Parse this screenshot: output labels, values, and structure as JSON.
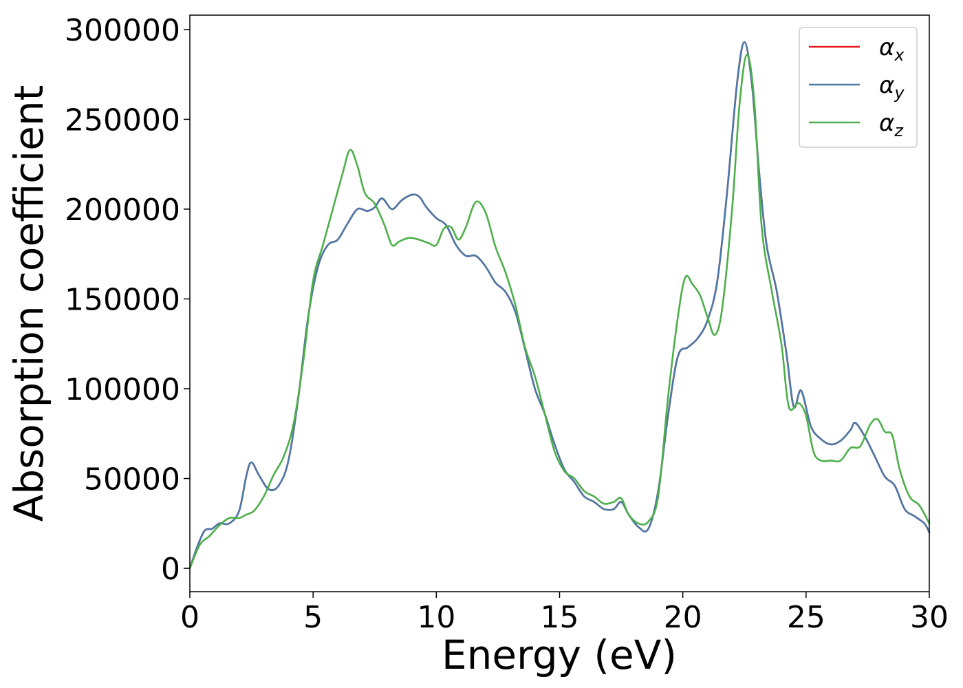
{
  "chart_data": {
    "type": "line",
    "title": "",
    "xlabel": "Energy (eV)",
    "ylabel": "Absorption coefficient",
    "xlim": [
      0,
      30
    ],
    "ylim": [
      -13000,
      308000
    ],
    "xticks": [
      0,
      5,
      10,
      15,
      20,
      25,
      30
    ],
    "xtick_labels": [
      "0",
      "5",
      "10",
      "15",
      "20",
      "25",
      "30"
    ],
    "yticks": [
      0,
      50000,
      100000,
      150000,
      200000,
      250000,
      300000
    ],
    "ytick_labels": [
      "0",
      "50000",
      "100000",
      "150000",
      "200000",
      "250000",
      "300000"
    ],
    "grid": false,
    "legend_position": "top-right",
    "series": [
      {
        "name": "α_x",
        "legend_symbol": "α",
        "legend_subscript": "x",
        "color": "#e41a1c",
        "x": [
          0,
          0.3,
          0.6,
          0.9,
          1.2,
          1.6,
          2.0,
          2.3,
          2.5,
          2.8,
          3.2,
          3.6,
          4.0,
          4.4,
          4.8,
          5.2,
          5.6,
          6.0,
          6.4,
          6.8,
          7.2,
          7.5,
          7.8,
          8.2,
          8.6,
          9.0,
          9.3,
          9.6,
          10.0,
          10.4,
          10.8,
          11.2,
          11.6,
          12.0,
          12.4,
          12.8,
          13.2,
          13.6,
          14.0,
          14.4,
          14.8,
          15.2,
          15.6,
          16.0,
          16.4,
          16.8,
          17.2,
          17.5,
          17.8,
          18.2,
          18.6,
          19.0,
          19.4,
          19.8,
          20.2,
          20.6,
          21.0,
          21.4,
          21.8,
          22.2,
          22.5,
          22.8,
          23.1,
          23.4,
          23.8,
          24.2,
          24.5,
          24.8,
          25.2,
          25.6,
          26.0,
          26.4,
          26.8,
          27.0,
          27.4,
          27.8,
          28.2,
          28.6,
          29.0,
          29.4,
          29.8,
          30.0
        ],
        "y": [
          0,
          12000,
          21000,
          22000,
          25000,
          25000,
          32000,
          52000,
          59000,
          52000,
          44000,
          46000,
          60000,
          95000,
          140000,
          168000,
          180000,
          183000,
          192000,
          200000,
          199000,
          201000,
          206000,
          200000,
          205000,
          208000,
          207000,
          201000,
          195000,
          191000,
          180000,
          174000,
          174000,
          168000,
          159000,
          154000,
          143000,
          122000,
          100000,
          86000,
          69000,
          55000,
          48000,
          40000,
          37000,
          33000,
          33000,
          37000,
          30000,
          23000,
          22000,
          43000,
          85000,
          118000,
          123000,
          128000,
          138000,
          160000,
          210000,
          270000,
          293000,
          270000,
          220000,
          180000,
          155000,
          120000,
          90000,
          99000,
          79000,
          72000,
          69000,
          71000,
          77000,
          81000,
          73000,
          62000,
          51000,
          46000,
          33000,
          29000,
          25000,
          20000
        ]
      },
      {
        "name": "α_y",
        "legend_symbol": "α",
        "legend_subscript": "y",
        "color": "#4a79a8",
        "x": [
          0,
          0.3,
          0.6,
          0.9,
          1.2,
          1.6,
          2.0,
          2.3,
          2.5,
          2.8,
          3.2,
          3.6,
          4.0,
          4.4,
          4.8,
          5.2,
          5.6,
          6.0,
          6.4,
          6.8,
          7.2,
          7.5,
          7.8,
          8.2,
          8.6,
          9.0,
          9.3,
          9.6,
          10.0,
          10.4,
          10.8,
          11.2,
          11.6,
          12.0,
          12.4,
          12.8,
          13.2,
          13.6,
          14.0,
          14.4,
          14.8,
          15.2,
          15.6,
          16.0,
          16.4,
          16.8,
          17.2,
          17.5,
          17.8,
          18.2,
          18.6,
          19.0,
          19.4,
          19.8,
          20.2,
          20.6,
          21.0,
          21.4,
          21.8,
          22.2,
          22.5,
          22.8,
          23.1,
          23.4,
          23.8,
          24.2,
          24.5,
          24.8,
          25.2,
          25.6,
          26.0,
          26.4,
          26.8,
          27.0,
          27.4,
          27.8,
          28.2,
          28.6,
          29.0,
          29.4,
          29.8,
          30.0
        ],
        "y": [
          0,
          12000,
          21000,
          22000,
          25000,
          25000,
          32000,
          52000,
          59000,
          52000,
          44000,
          46000,
          60000,
          95000,
          140000,
          168000,
          180000,
          183000,
          192000,
          200000,
          199000,
          201000,
          206000,
          200000,
          205000,
          208000,
          207000,
          201000,
          195000,
          191000,
          180000,
          174000,
          174000,
          168000,
          159000,
          154000,
          143000,
          122000,
          100000,
          86000,
          69000,
          55000,
          48000,
          40000,
          37000,
          33000,
          33000,
          37000,
          30000,
          23000,
          22000,
          43000,
          85000,
          118000,
          123000,
          128000,
          138000,
          160000,
          210000,
          270000,
          293000,
          270000,
          220000,
          180000,
          155000,
          120000,
          90000,
          99000,
          79000,
          72000,
          69000,
          71000,
          77000,
          81000,
          73000,
          62000,
          51000,
          46000,
          33000,
          29000,
          25000,
          20000
        ]
      },
      {
        "name": "α_z",
        "legend_symbol": "α",
        "legend_subscript": "z",
        "color": "#4daf4a",
        "x": [
          0,
          0.4,
          0.8,
          1.2,
          1.6,
          2.0,
          2.3,
          2.6,
          3.0,
          3.4,
          3.8,
          4.2,
          4.6,
          5.0,
          5.4,
          5.8,
          6.2,
          6.5,
          6.8,
          7.1,
          7.5,
          7.9,
          8.2,
          8.5,
          8.9,
          9.3,
          9.7,
          10.0,
          10.3,
          10.6,
          10.9,
          11.2,
          11.6,
          12.0,
          12.4,
          12.8,
          13.2,
          13.6,
          14.0,
          14.4,
          14.8,
          15.2,
          15.6,
          16.0,
          16.4,
          16.8,
          17.2,
          17.5,
          17.8,
          18.2,
          18.6,
          19.0,
          19.4,
          19.8,
          20.1,
          20.4,
          20.7,
          21.0,
          21.3,
          21.6,
          22.0,
          22.3,
          22.6,
          22.9,
          23.2,
          23.6,
          24.0,
          24.3,
          24.7,
          25.0,
          25.3,
          25.6,
          26.0,
          26.4,
          26.8,
          27.2,
          27.6,
          27.9,
          28.2,
          28.5,
          28.8,
          29.2,
          29.6,
          30.0
        ],
        "y": [
          0,
          13000,
          18000,
          24000,
          28000,
          28000,
          30000,
          32000,
          40000,
          52000,
          62000,
          80000,
          115000,
          160000,
          180000,
          200000,
          220000,
          233000,
          224000,
          209000,
          203000,
          191000,
          180000,
          182000,
          184000,
          183000,
          181000,
          180000,
          189000,
          190000,
          183000,
          190000,
          204000,
          198000,
          179000,
          165000,
          147000,
          123000,
          107000,
          86000,
          65000,
          54000,
          50000,
          43000,
          40000,
          36000,
          37000,
          39000,
          30000,
          25000,
          26000,
          40000,
          95000,
          140000,
          162000,
          158000,
          152000,
          140000,
          130000,
          145000,
          200000,
          258000,
          286000,
          260000,
          190000,
          155000,
          125000,
          90000,
          92000,
          85000,
          65000,
          60000,
          60000,
          60000,
          67000,
          68000,
          80000,
          83000,
          76000,
          74000,
          55000,
          40000,
          35000,
          25000
        ]
      }
    ]
  }
}
